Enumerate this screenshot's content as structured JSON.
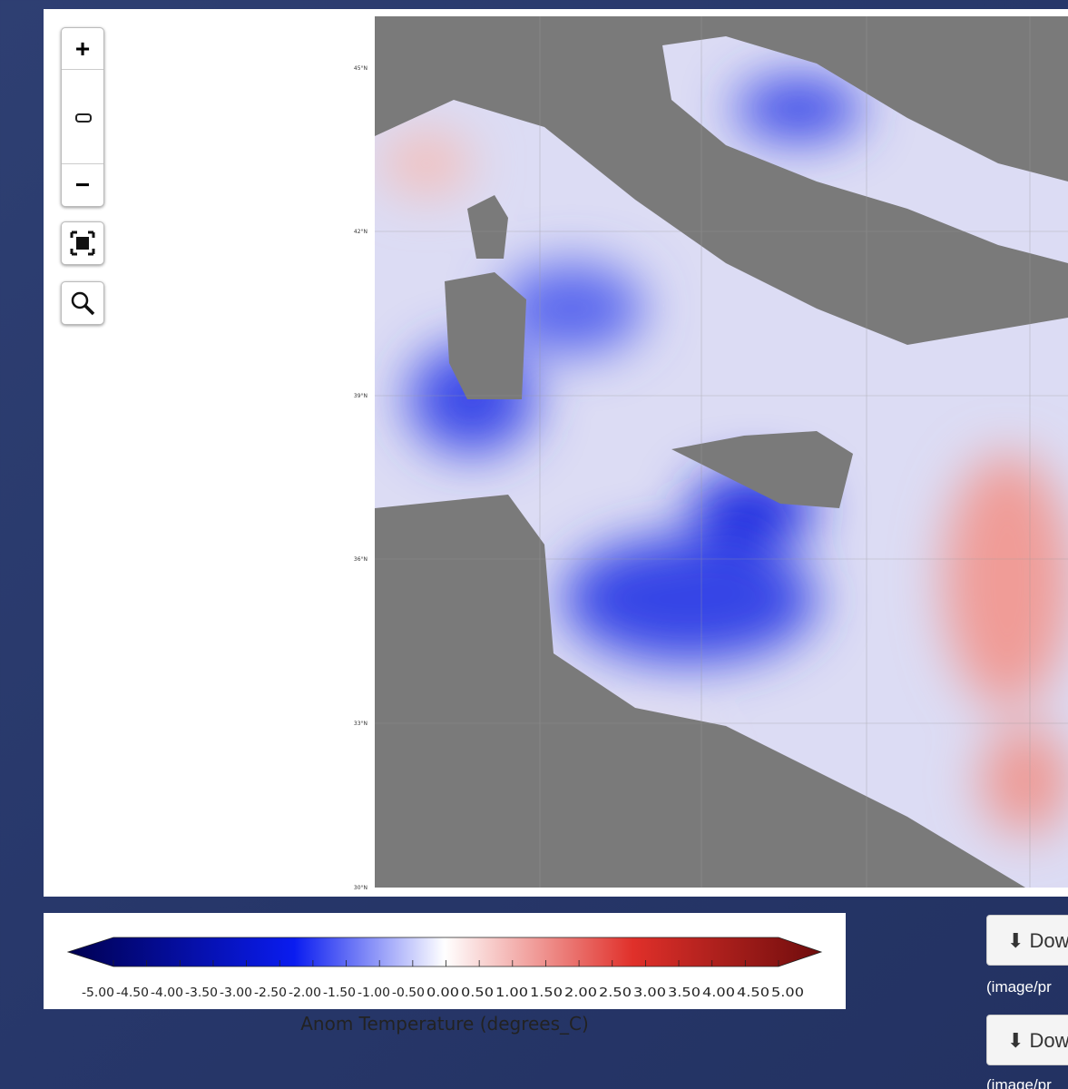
{
  "map": {
    "lat_labels": [
      "45°N",
      "42°N",
      "39°N",
      "36°N",
      "33°N",
      "30°N"
    ]
  },
  "legend": {
    "title": "Anom Temperature (degrees_C)",
    "ticks": [
      {
        "value": -5,
        "label": "-5.00"
      },
      {
        "value": -4.5,
        "label": "-4.50"
      },
      {
        "value": -4,
        "label": "-4.00"
      },
      {
        "value": -3.5,
        "label": "-3.50"
      },
      {
        "value": -3,
        "label": "-3.00"
      },
      {
        "value": -2.5,
        "label": "-2.50"
      },
      {
        "value": -2,
        "label": "-2.00"
      },
      {
        "value": -1.5,
        "label": "-1.50"
      },
      {
        "value": -1,
        "label": "-1.00"
      },
      {
        "value": -0.5,
        "label": "-0.50"
      },
      {
        "value": 0,
        "label": "0.00"
      },
      {
        "value": 0.5,
        "label": "0.50"
      },
      {
        "value": 1,
        "label": "1.00"
      },
      {
        "value": 1.5,
        "label": "1.50"
      },
      {
        "value": 2,
        "label": "2.00"
      },
      {
        "value": 2.5,
        "label": "2.50"
      },
      {
        "value": 3,
        "label": "3.00"
      },
      {
        "value": 3.5,
        "label": "3.50"
      },
      {
        "value": 4,
        "label": "4.00"
      },
      {
        "value": 4.5,
        "label": "4.50"
      },
      {
        "value": 5,
        "label": "5.00"
      }
    ]
  },
  "downloads": [
    {
      "button": "Dow",
      "format": "(image/pr"
    },
    {
      "button": "Dow",
      "format": "(image/pr"
    }
  ]
}
